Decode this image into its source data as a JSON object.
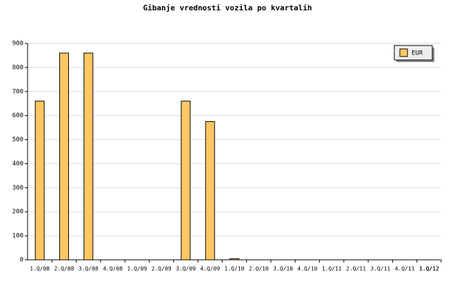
{
  "chart_data": {
    "type": "bar",
    "title": "Gibanje vrednosti vozila po kvartalih",
    "categories": [
      "1.Q/08",
      "2.Q/08",
      "3.Q/08",
      "4.Q/08",
      "1.Q/09",
      "2.Q/09",
      "3.Q/09",
      "4.Q/09",
      "1.Q/10",
      "2.Q/10",
      "3.Q/10",
      "4.Q/10",
      "1.Q/11",
      "2.Q/11",
      "3.Q/11",
      "4.Q/11",
      "1.Q/12",
      "1.Q/12"
    ],
    "series": [
      {
        "name": "EUR",
        "color": "#fec762",
        "values": [
          660,
          860,
          860,
          0,
          0,
          0,
          660,
          575,
          5,
          0,
          0,
          0,
          0,
          0,
          0,
          0,
          0,
          0
        ]
      }
    ],
    "ylim": [
      0,
      900
    ],
    "yticks": [
      0,
      100,
      200,
      300,
      400,
      500,
      600,
      700,
      800,
      900
    ],
    "grid": true,
    "legend": "top-right"
  }
}
